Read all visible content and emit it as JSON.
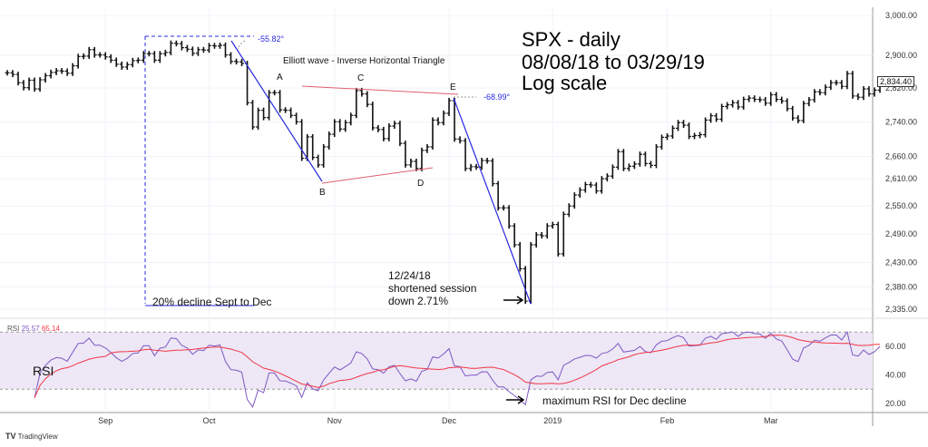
{
  "chart_data": {
    "type": "ohlc-bar",
    "title": "SPX - daily",
    "subtitle_lines": [
      "08/08/18 to 03/29/19",
      "Log scale"
    ],
    "y_scale": "log",
    "ylim": [
      2320,
      3000
    ],
    "y_ticks": [
      "3,000.00",
      "2,900.00",
      "2,820.00",
      "2,740.00",
      "2,660.00",
      "2,610.00",
      "2,550.00",
      "2,490.00",
      "2,430.00",
      "2,380.00",
      "2,335.00"
    ],
    "y_tick_values": [
      3000,
      2900,
      2820,
      2740,
      2660,
      2610,
      2550,
      2490,
      2430,
      2380,
      2335
    ],
    "last_price_label": "2,834.40",
    "x_ticks": [
      {
        "label": "Sep",
        "date": "2018-09-04"
      },
      {
        "label": "Oct",
        "date": "2018-10-01"
      },
      {
        "label": "Nov",
        "date": "2018-11-01"
      },
      {
        "label": "Dec",
        "date": "2018-12-03"
      },
      {
        "label": "2019",
        "date": "2019-01-02"
      },
      {
        "label": "Feb",
        "date": "2019-02-01"
      },
      {
        "label": "Mar",
        "date": "2019-03-01"
      }
    ],
    "months": [
      {
        "month": "2018-08",
        "days": [
          8,
          9,
          10,
          13,
          14,
          15,
          16,
          17,
          20,
          21,
          22,
          23,
          24,
          27,
          28,
          29,
          30,
          31
        ],
        "close": [
          2857,
          2853,
          2833,
          2821,
          2839,
          2818,
          2840,
          2850,
          2858,
          2862,
          2861,
          2856,
          2874,
          2897,
          2898,
          2914,
          2901,
          2901
        ]
      },
      {
        "month": "2018-09",
        "days": [
          4,
          5,
          6,
          7,
          10,
          11,
          12,
          13,
          14,
          17,
          18,
          19,
          20,
          21,
          24,
          25,
          26,
          27,
          28
        ],
        "close": [
          2896,
          2888,
          2878,
          2871,
          2877,
          2887,
          2888,
          2904,
          2904,
          2888,
          2904,
          2907,
          2930,
          2929,
          2919,
          2915,
          2905,
          2914,
          2913
        ]
      },
      {
        "month": "2018-10",
        "days": [
          1,
          2,
          3,
          4,
          5,
          8,
          9,
          10,
          11,
          12,
          15,
          16,
          17,
          18,
          19,
          22,
          23,
          24,
          25,
          26,
          29,
          30,
          31
        ],
        "close": [
          2924,
          2923,
          2925,
          2901,
          2885,
          2884,
          2880,
          2785,
          2728,
          2767,
          2750,
          2809,
          2809,
          2768,
          2767,
          2755,
          2740,
          2656,
          2705,
          2658,
          2641,
          2682,
          2711
        ]
      },
      {
        "month": "2018-11",
        "days": [
          1,
          2,
          5,
          6,
          7,
          8,
          9,
          12,
          13,
          14,
          15,
          16,
          19,
          20,
          21,
          23,
          26,
          27,
          28,
          29,
          30
        ],
        "close": [
          2740,
          2723,
          2738,
          2755,
          2814,
          2806,
          2781,
          2726,
          2722,
          2701,
          2730,
          2736,
          2690,
          2641,
          2649,
          2633,
          2674,
          2682,
          2744,
          2738,
          2760
        ]
      },
      {
        "month": "2018-12",
        "days": [
          3,
          4,
          6,
          7,
          10,
          11,
          12,
          13,
          14,
          17,
          18,
          19,
          20,
          21,
          24,
          26,
          27,
          28,
          31
        ],
        "close": [
          2790,
          2700,
          2696,
          2633,
          2637,
          2636,
          2651,
          2650,
          2599,
          2546,
          2546,
          2507,
          2467,
          2417,
          2351,
          2467,
          2488,
          2486,
          2507
        ]
      },
      {
        "month": "2019-01",
        "days": [
          2,
          3,
          4,
          7,
          8,
          9,
          10,
          11,
          14,
          15,
          16,
          17,
          18,
          22,
          23,
          24,
          25,
          28,
          29,
          30,
          31
        ],
        "close": [
          2510,
          2448,
          2532,
          2550,
          2574,
          2585,
          2597,
          2596,
          2583,
          2610,
          2616,
          2636,
          2671,
          2633,
          2638,
          2643,
          2665,
          2644,
          2640,
          2682,
          2704
        ]
      },
      {
        "month": "2019-02",
        "days": [
          1,
          4,
          5,
          6,
          7,
          8,
          11,
          12,
          13,
          14,
          15,
          19,
          20,
          21,
          22,
          25,
          26,
          27,
          28
        ],
        "close": [
          2707,
          2725,
          2738,
          2732,
          2706,
          2708,
          2710,
          2744,
          2754,
          2746,
          2776,
          2780,
          2785,
          2775,
          2793,
          2796,
          2793,
          2792,
          2784
        ]
      },
      {
        "month": "2019-03",
        "days": [
          1,
          4,
          5,
          6,
          7,
          8,
          11,
          12,
          13,
          14,
          15,
          18,
          19,
          20,
          21,
          22,
          25,
          26,
          27,
          28,
          29
        ],
        "close": [
          2804,
          2793,
          2789,
          2771,
          2749,
          2743,
          2783,
          2792,
          2811,
          2809,
          2822,
          2833,
          2833,
          2824,
          2855,
          2801,
          2798,
          2818,
          2806,
          2815,
          2834
        ]
      }
    ],
    "rsi_pane": {
      "label": "RSI",
      "values_label": [
        "25.57",
        "65.14"
      ],
      "y_ticks": [
        "60.00",
        "40.00",
        "20.00"
      ],
      "y_tick_values": [
        60,
        40,
        20
      ],
      "bands": [
        70,
        30
      ],
      "rsi_color": "#7e57c2",
      "ma_color": "#f23645",
      "band_fill": "#ede7f6"
    },
    "annotations": {
      "wave_title": "Elliott wave - Inverse Horizontal Triangle",
      "wave_points": [
        "A",
        "B",
        "C",
        "D",
        "E"
      ],
      "angle1": "-55.82°",
      "angle2": "-68.99°",
      "decline_note": "20% decline Sept to Dec",
      "session_note": [
        "12/24/18",
        "shortened session",
        "down 2.71%"
      ],
      "rsi_big_label": "RSI",
      "rsi_note": "maximum RSI for Dec decline",
      "trend_color": "#2a2ae0",
      "triangle_color": "#e06070"
    }
  },
  "footer": {
    "brand": "TradingView"
  }
}
